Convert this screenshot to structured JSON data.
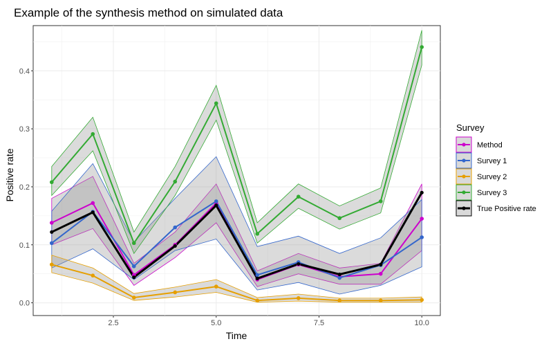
{
  "chart_data": {
    "type": "line",
    "title": "Example of the synthesis method on simulated data",
    "xlabel": "Time",
    "ylabel": "Positive rate",
    "xlim": [
      0.55,
      10.45
    ],
    "ylim": [
      -0.022,
      0.478
    ],
    "xticks": [
      2.5,
      5.0,
      7.5,
      10.0
    ],
    "xtick_labels": [
      "2.5",
      "5.0",
      "7.5",
      "10.0"
    ],
    "yticks": [
      0.0,
      0.1,
      0.2,
      0.3,
      0.4
    ],
    "ytick_labels": [
      "0.0",
      "0.1",
      "0.2",
      "0.3",
      "0.4"
    ],
    "grid": true,
    "legend": {
      "title": "Survey",
      "position": "right"
    },
    "x": [
      1,
      2,
      3,
      4,
      5,
      6,
      7,
      8,
      9,
      10
    ],
    "series": [
      {
        "name": "Method",
        "color": "#cc00cc",
        "values": [
          0.138,
          0.172,
          0.048,
          0.1,
          0.172,
          0.04,
          0.066,
          0.045,
          0.05,
          0.145
        ],
        "lower": [
          0.1,
          0.128,
          0.03,
          0.078,
          0.138,
          0.028,
          0.05,
          0.032,
          0.032,
          0.09
        ],
        "upper": [
          0.18,
          0.218,
          0.068,
          0.122,
          0.205,
          0.055,
          0.085,
          0.06,
          0.068,
          0.205
        ]
      },
      {
        "name": "Survey 1",
        "color": "#3366cc",
        "values": [
          0.103,
          0.157,
          0.063,
          0.13,
          0.175,
          0.048,
          0.07,
          0.043,
          0.065,
          0.113
        ],
        "lower": [
          0.06,
          0.093,
          0.04,
          0.09,
          0.11,
          0.022,
          0.035,
          0.015,
          0.03,
          0.062
        ],
        "upper": [
          0.158,
          0.24,
          0.105,
          0.18,
          0.252,
          0.097,
          0.115,
          0.085,
          0.112,
          0.178
        ]
      },
      {
        "name": "Survey 2",
        "color": "#e69f00",
        "values": [
          0.066,
          0.047,
          0.009,
          0.018,
          0.028,
          0.004,
          0.008,
          0.004,
          0.004,
          0.005
        ],
        "lower": [
          0.052,
          0.034,
          0.004,
          0.01,
          0.018,
          0.001,
          0.003,
          0.001,
          0.001,
          0.001
        ],
        "upper": [
          0.082,
          0.06,
          0.016,
          0.027,
          0.04,
          0.009,
          0.015,
          0.008,
          0.008,
          0.01
        ]
      },
      {
        "name": "Survey 3",
        "color": "#33aa33",
        "values": [
          0.208,
          0.291,
          0.103,
          0.209,
          0.344,
          0.119,
          0.183,
          0.146,
          0.175,
          0.441
        ],
        "lower": [
          0.185,
          0.262,
          0.085,
          0.185,
          0.315,
          0.103,
          0.163,
          0.127,
          0.155,
          0.41
        ],
        "upper": [
          0.235,
          0.32,
          0.122,
          0.235,
          0.375,
          0.138,
          0.205,
          0.167,
          0.198,
          0.47
        ]
      },
      {
        "name": "True Positive rate",
        "color": "#000000",
        "values": [
          0.122,
          0.156,
          0.044,
          0.098,
          0.168,
          0.042,
          0.067,
          0.049,
          0.066,
          0.19
        ]
      }
    ]
  }
}
